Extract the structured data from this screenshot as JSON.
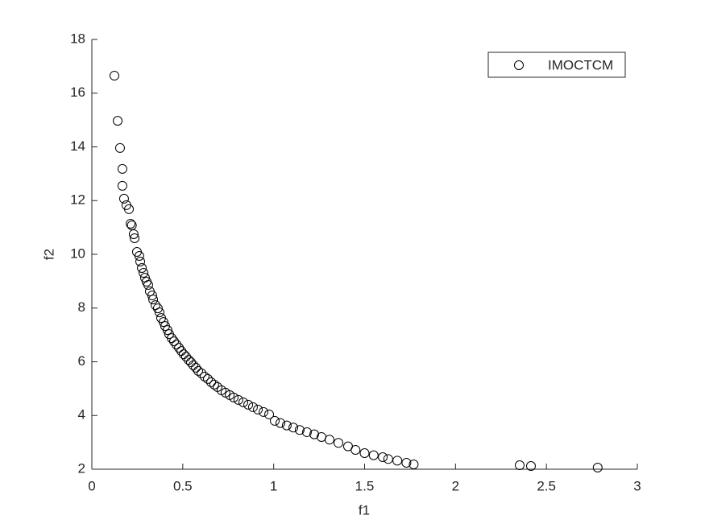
{
  "chart_data": {
    "type": "scatter",
    "xlabel": "f1",
    "ylabel": "f2",
    "xlim": [
      0,
      3
    ],
    "ylim": [
      2,
      18
    ],
    "xticks": [
      0,
      0.5,
      1,
      1.5,
      2,
      2.5,
      3
    ],
    "yticks": [
      2,
      4,
      6,
      8,
      10,
      12,
      14,
      16,
      18
    ],
    "legend_position": "upper right",
    "series": [
      {
        "name": "IMOCTCM",
        "color": "#000000",
        "x": [
          0.124,
          0.142,
          0.155,
          0.168,
          0.168,
          0.177,
          0.19,
          0.204,
          0.213,
          0.22,
          0.23,
          0.235,
          0.248,
          0.261,
          0.266,
          0.275,
          0.284,
          0.292,
          0.301,
          0.31,
          0.319,
          0.332,
          0.337,
          0.35,
          0.363,
          0.372,
          0.381,
          0.394,
          0.403,
          0.416,
          0.425,
          0.439,
          0.452,
          0.465,
          0.479,
          0.492,
          0.505,
          0.518,
          0.532,
          0.545,
          0.558,
          0.572,
          0.585,
          0.603,
          0.62,
          0.638,
          0.656,
          0.673,
          0.691,
          0.713,
          0.735,
          0.758,
          0.78,
          0.806,
          0.833,
          0.86,
          0.886,
          0.913,
          0.944,
          0.975,
          1.006,
          1.037,
          1.072,
          1.108,
          1.143,
          1.183,
          1.223,
          1.263,
          1.307,
          1.356,
          1.409,
          1.45,
          1.5,
          1.55,
          1.6,
          1.63,
          1.68,
          1.73,
          1.77,
          2.353,
          2.415,
          2.782
        ],
        "values": [
          16.65,
          14.97,
          13.96,
          13.18,
          12.55,
          12.07,
          11.83,
          11.68,
          11.14,
          11.08,
          10.75,
          10.6,
          10.09,
          9.94,
          9.73,
          9.49,
          9.31,
          9.13,
          8.98,
          8.86,
          8.62,
          8.47,
          8.32,
          8.11,
          7.99,
          7.84,
          7.63,
          7.48,
          7.33,
          7.18,
          7.03,
          6.88,
          6.76,
          6.64,
          6.52,
          6.4,
          6.28,
          6.19,
          6.07,
          5.98,
          5.87,
          5.78,
          5.66,
          5.57,
          5.45,
          5.36,
          5.24,
          5.15,
          5.06,
          4.94,
          4.85,
          4.76,
          4.67,
          4.58,
          4.49,
          4.4,
          4.31,
          4.22,
          4.13,
          4.04,
          3.8,
          3.72,
          3.63,
          3.55,
          3.46,
          3.38,
          3.3,
          3.2,
          3.1,
          2.98,
          2.85,
          2.72,
          2.6,
          2.52,
          2.45,
          2.38,
          2.32,
          2.24,
          2.18,
          2.15,
          2.12,
          2.06
        ]
      }
    ]
  }
}
